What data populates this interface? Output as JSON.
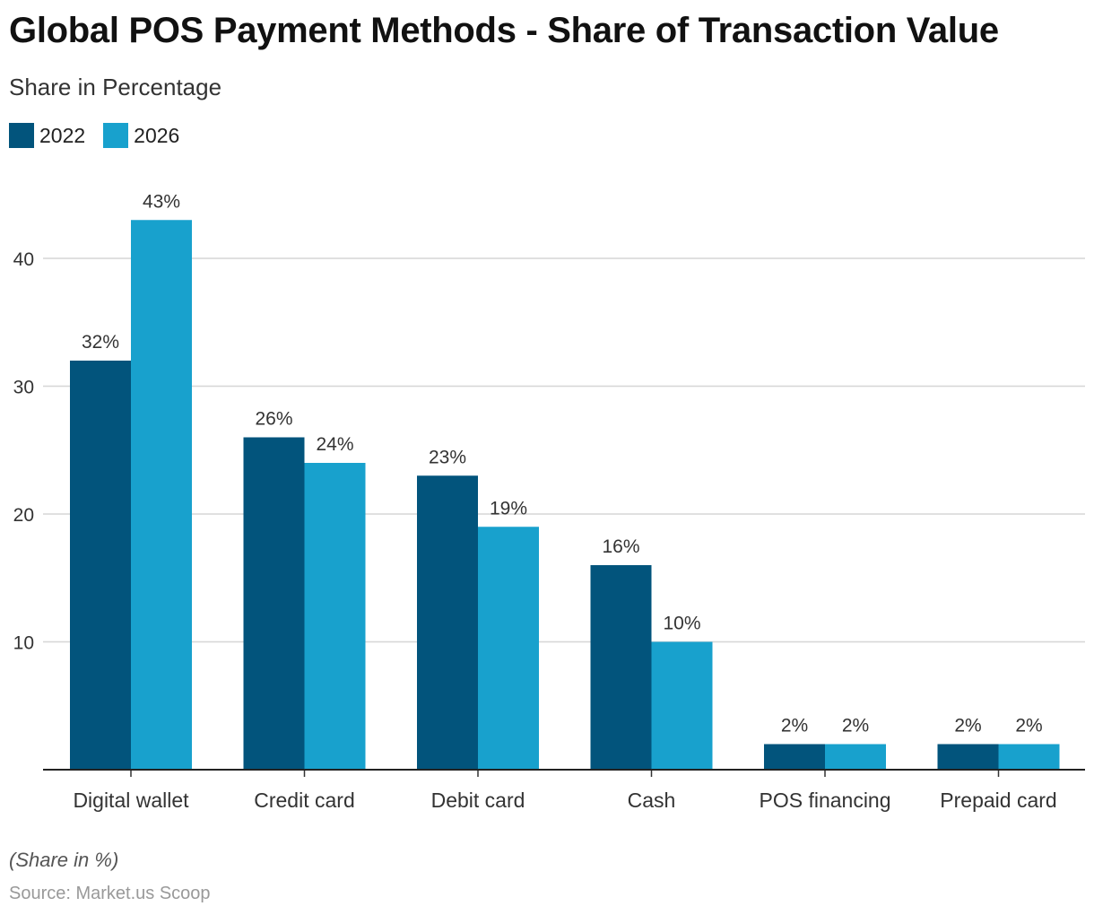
{
  "header": {
    "title": "Global POS Payment Methods - Share of Transaction Value",
    "subtitle": "Share in Percentage"
  },
  "footer": {
    "note": "(Share in %)",
    "source": "Source: Market.us Scoop"
  },
  "chart_data": {
    "type": "bar",
    "title": "Global POS Payment Methods - Share of Transaction Value",
    "subtitle": "Share in Percentage",
    "categories": [
      "Digital wallet",
      "Credit card",
      "Debit card",
      "Cash",
      "POS financing",
      "Prepaid card"
    ],
    "series": [
      {
        "name": "2022",
        "color": "#02547c",
        "values": [
          32,
          26,
          23,
          16,
          2,
          2
        ]
      },
      {
        "name": "2026",
        "color": "#18a1cd",
        "values": [
          43,
          24,
          19,
          10,
          2,
          2
        ]
      }
    ],
    "value_suffix": "%",
    "yticks": [
      10,
      20,
      30,
      40
    ],
    "ylim": [
      0,
      45
    ],
    "grid": true,
    "legend_placement": "top-left"
  }
}
